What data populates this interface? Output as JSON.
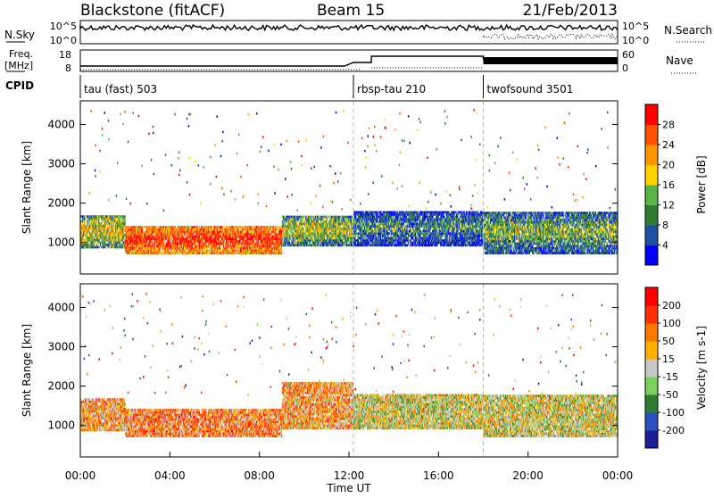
{
  "header": {
    "station": "Blackstone (fitACF)",
    "beam": "Beam 15",
    "date": "21/Feb/2013"
  },
  "strip_nsky": {
    "left_label": "N.Sky",
    "right_label": "N.Search",
    "left_ticks": [
      "10^5",
      "10^0"
    ],
    "right_ticks": [
      "10^5",
      "10^0"
    ]
  },
  "strip_freq": {
    "left_label_1": "Freq.",
    "left_label_2": "[MHz]",
    "right_label": "Nave",
    "left_ticks": [
      "18",
      "8"
    ],
    "right_ticks": [
      "60",
      "0"
    ]
  },
  "cpid": {
    "label": "CPID",
    "segments": [
      {
        "name": "tau (fast) 503",
        "start": 0,
        "end": 12.2
      },
      {
        "name": "rbsp-tau 210",
        "start": 12.2,
        "end": 18
      },
      {
        "name": "twofsound 3501",
        "start": 18,
        "end": 24
      }
    ]
  },
  "chart_data": [
    {
      "type": "heatmap",
      "name": "power",
      "ylabel": "Slant Range [km]",
      "yticks": [
        1000,
        2000,
        3000,
        4000
      ],
      "ylim": [
        200,
        4600
      ],
      "xlim": [
        0,
        24
      ],
      "colorbar_label": "Power [dB]",
      "colorbar_ticks": [
        "4",
        "8",
        "12",
        "16",
        "20",
        "24",
        "28"
      ],
      "colors": [
        "#0000ff",
        "#1e50a0",
        "#2e7d32",
        "#58b548",
        "#ffd200",
        "#ff9500",
        "#ff5000",
        "#ff0000"
      ],
      "regions": [
        {
          "t0": 0.0,
          "t1": 2.0,
          "r0": 850,
          "r1": 1700,
          "level": 0.6
        },
        {
          "t0": 2.0,
          "t1": 9.0,
          "r0": 700,
          "r1": 1400,
          "level": 0.95
        },
        {
          "t0": 9.0,
          "t1": 12.2,
          "r0": 900,
          "r1": 1700,
          "level": 0.55
        },
        {
          "t0": 12.2,
          "t1": 18.0,
          "r0": 900,
          "r1": 1800,
          "level": 0.35
        },
        {
          "t0": 18.0,
          "t1": 24.0,
          "r0": 700,
          "r1": 1800,
          "level": 0.45
        }
      ]
    },
    {
      "type": "heatmap",
      "name": "velocity",
      "ylabel": "Slant Range [km]",
      "yticks": [
        1000,
        2000,
        3000,
        4000
      ],
      "ylim": [
        200,
        4600
      ],
      "xlim": [
        0,
        24
      ],
      "colorbar_label": "Velocity [m s-1]",
      "colorbar_ticks": [
        "200",
        "100",
        "50",
        "15",
        "-15",
        "-50",
        "-100",
        "-200"
      ],
      "colors": [
        "#1e1e96",
        "#2a4fc0",
        "#2e7d32",
        "#7ad15a",
        "#c8c8c8",
        "#ffb000",
        "#ff7800",
        "#ff3000",
        "#ff0000"
      ],
      "regions": [
        {
          "t0": 0.0,
          "t1": 2.0,
          "r0": 850,
          "r1": 1700,
          "level": 0.65
        },
        {
          "t0": 2.0,
          "t1": 9.0,
          "r0": 700,
          "r1": 1400,
          "level": 0.7
        },
        {
          "t0": 9.0,
          "t1": 12.2,
          "r0": 900,
          "r1": 2100,
          "level": 0.65
        },
        {
          "t0": 12.2,
          "t1": 18.0,
          "r0": 900,
          "r1": 1800,
          "level": 0.5
        },
        {
          "t0": 18.0,
          "t1": 24.0,
          "r0": 700,
          "r1": 1800,
          "level": 0.5
        }
      ]
    }
  ],
  "x_axis": {
    "label": "Time UT",
    "ticks": [
      "00:00",
      "04:00",
      "08:00",
      "12:00",
      "16:00",
      "20:00",
      "00:00"
    ]
  }
}
